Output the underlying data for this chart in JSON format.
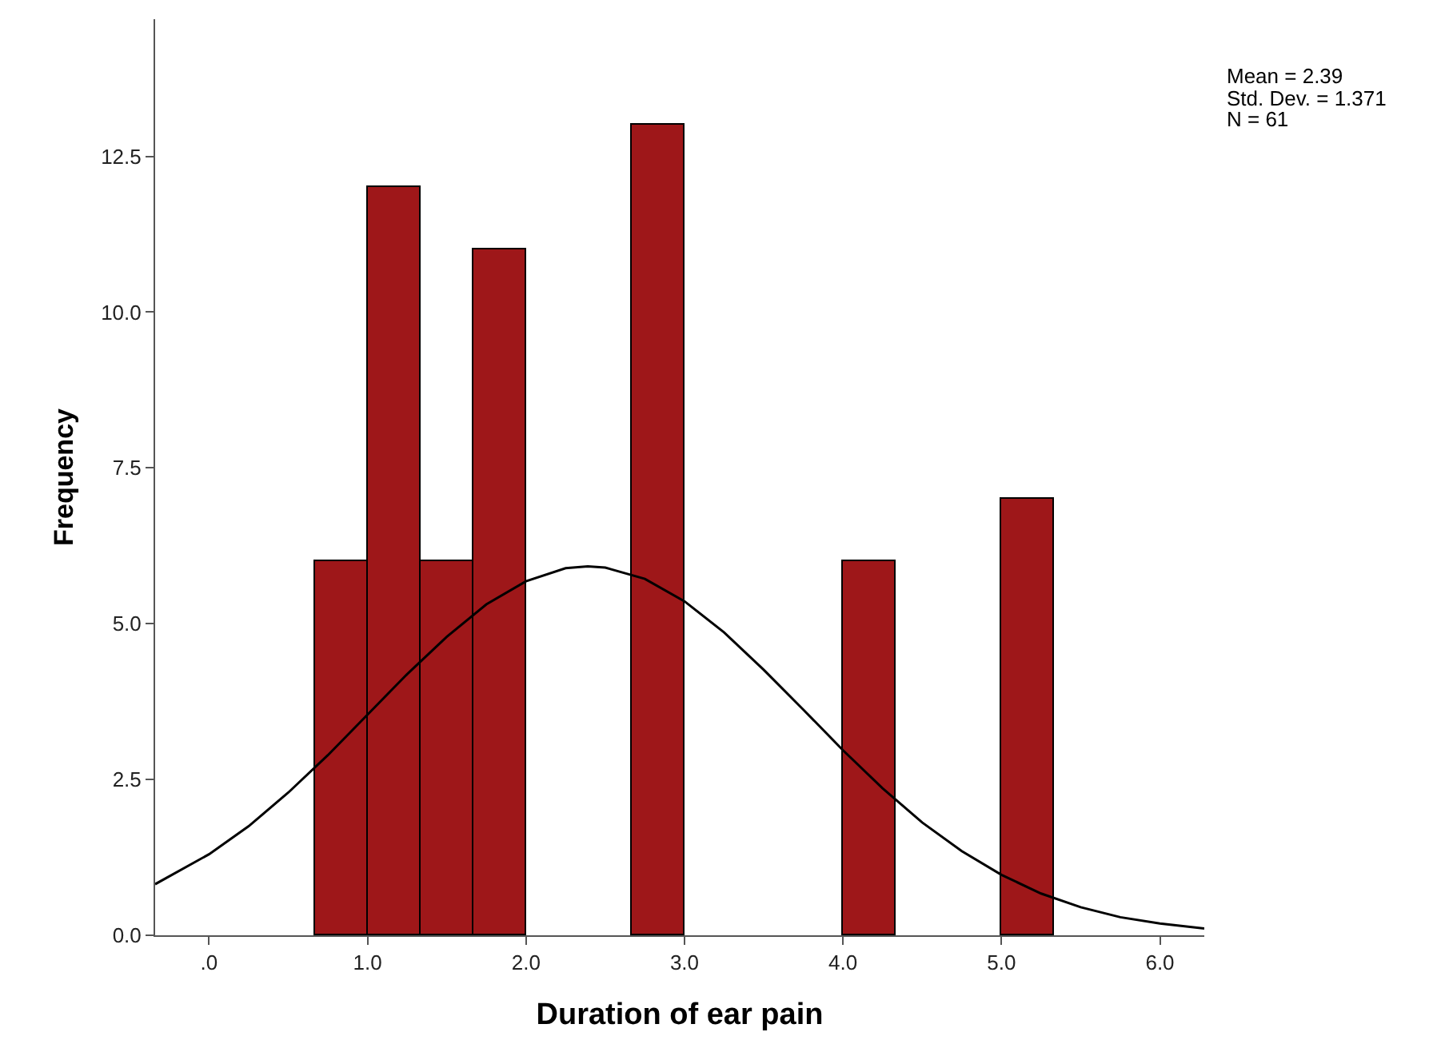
{
  "chart_data": {
    "type": "histogram",
    "xlabel": "Duration of ear pain",
    "ylabel": "Frequency",
    "bins": [
      0.667,
      1.0,
      1.333,
      1.667,
      2.0,
      2.333,
      2.667,
      3.0,
      3.333,
      3.667,
      4.0,
      4.333,
      4.667,
      5.0,
      5.333
    ],
    "values": [
      6,
      12,
      6,
      11,
      0,
      0,
      13,
      0,
      0,
      0,
      6,
      0,
      0,
      7
    ],
    "color": "#9e1719",
    "series": [
      {
        "type": "line",
        "color": "#000000",
        "x": [
          -0.34,
          0,
          0.25,
          0.5,
          0.75,
          1.0,
          1.25,
          1.5,
          1.75,
          2.0,
          2.25,
          2.39,
          2.5,
          2.75,
          3.0,
          3.25,
          3.5,
          3.75,
          4.0,
          4.25,
          4.5,
          4.75,
          5.0,
          5.25,
          5.5,
          5.75,
          6.0,
          6.28
        ],
        "values": [
          0.82,
          1.3,
          1.75,
          2.29,
          2.89,
          3.54,
          4.19,
          4.79,
          5.31,
          5.68,
          5.89,
          5.92,
          5.9,
          5.72,
          5.36,
          4.86,
          4.26,
          3.62,
          2.97,
          2.36,
          1.81,
          1.35,
          0.97,
          0.67,
          0.45,
          0.29,
          0.19,
          0.11
        ]
      }
    ],
    "xlim": [
      -0.34,
      6.28
    ],
    "xticks": [
      {
        "value": 0,
        "label": ".0"
      },
      {
        "value": 1,
        "label": "1.0"
      },
      {
        "value": 2,
        "label": "2.0"
      },
      {
        "value": 3,
        "label": "3.0"
      },
      {
        "value": 4,
        "label": "4.0"
      },
      {
        "value": 5,
        "label": "5.0"
      },
      {
        "value": 6,
        "label": "6.0"
      }
    ],
    "ylim": [
      0,
      14.7
    ],
    "yticks": [
      {
        "value": 0,
        "label": "0.0"
      },
      {
        "value": 2.5,
        "label": "2.5"
      },
      {
        "value": 5,
        "label": "5.0"
      },
      {
        "value": 7.5,
        "label": "7.5"
      },
      {
        "value": 10,
        "label": "10.0"
      },
      {
        "value": 12.5,
        "label": "12.5"
      }
    ],
    "annotations": [
      "Mean = 2.39",
      "Std. Dev. = 1.371",
      "N = 61"
    ]
  }
}
